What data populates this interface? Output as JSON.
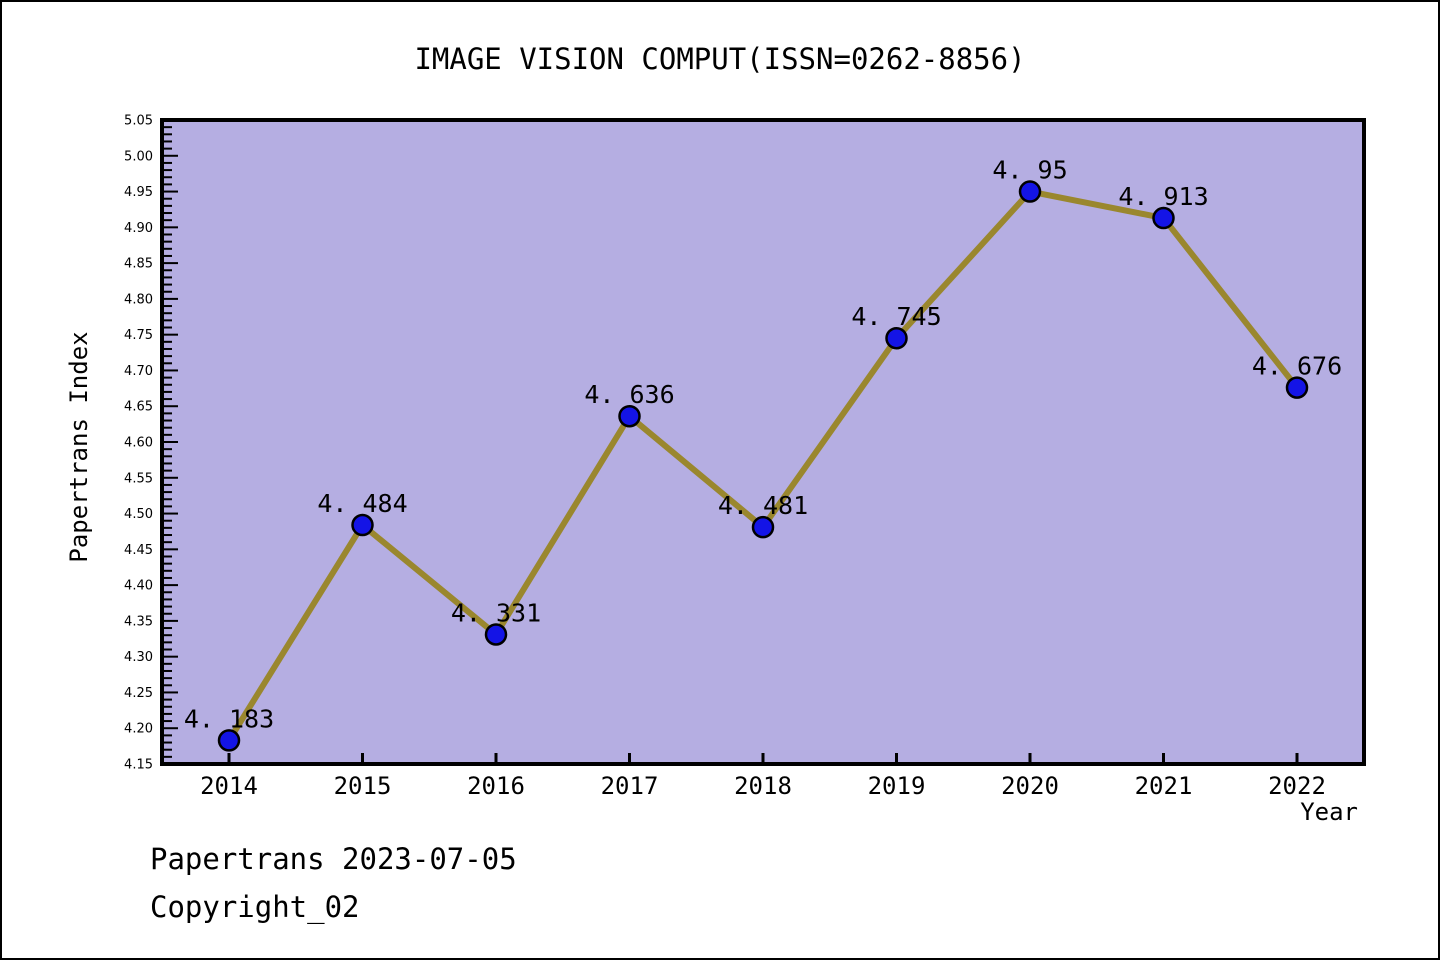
{
  "page": {
    "background_color": "#ffffff",
    "border_color": "#000000"
  },
  "chart_data": {
    "type": "line",
    "title": "IMAGE VISION COMPUT(ISSN=0262-8856)",
    "xlabel": "Year",
    "ylabel": "Papertrans Index",
    "x": [
      2014,
      2015,
      2016,
      2017,
      2018,
      2019,
      2020,
      2021,
      2022
    ],
    "series": [
      {
        "name": "Papertrans Index",
        "values": [
          4.183,
          4.484,
          4.331,
          4.636,
          4.481,
          4.745,
          4.95,
          4.913,
          4.676
        ]
      }
    ],
    "point_labels": [
      "4. 183",
      "4. 484",
      "4. 331",
      "4. 636",
      "4. 481",
      "4. 745",
      "4. 95",
      "4. 913",
      "4. 676"
    ],
    "ylim": [
      4.15,
      5.05
    ],
    "y_major_step": 0.05,
    "y_minor_step": 0.01,
    "y_tick_decimals": 2,
    "grid": "off",
    "legend": "none",
    "plot_bg_color": "#b5aee2",
    "line_color": "#9a872e",
    "marker_color": "#1414e6",
    "marker_edge_color": "#000000",
    "axis_color": "#000000",
    "text_color": "#000000"
  },
  "footer": {
    "line1": "Papertrans 2023-07-05",
    "line2": "Copyright_02"
  }
}
